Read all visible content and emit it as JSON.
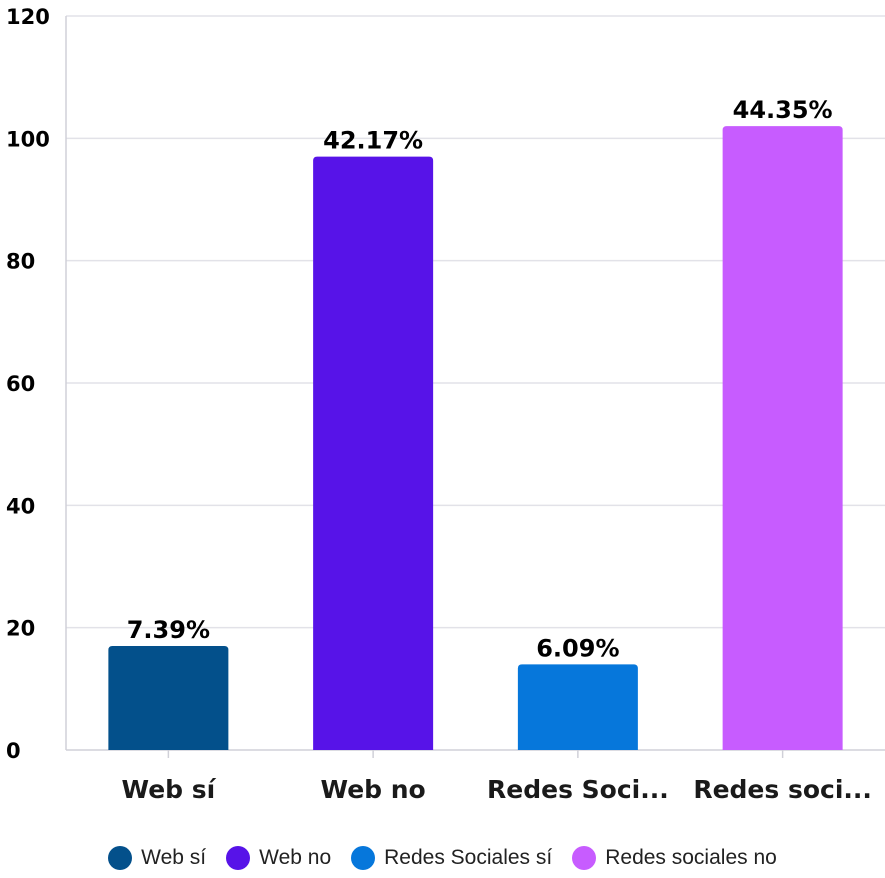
{
  "chart_data": {
    "type": "bar",
    "categories": [
      "Web sí",
      "Web no",
      "Redes Soci...",
      "Redes soci..."
    ],
    "values": [
      17,
      97,
      14,
      102
    ],
    "data_labels": [
      "7.39%",
      "42.17%",
      "6.09%",
      "44.35%"
    ],
    "colors": [
      "#03508b",
      "#5713e8",
      "#0677db",
      "#c75cff"
    ],
    "ylim": [
      0,
      120
    ],
    "yticks": [
      "0",
      "20",
      "40",
      "60",
      "80",
      "100",
      "120"
    ],
    "grid": true,
    "legend_position": "bottom",
    "legend": [
      "Web sí",
      "Web no",
      "Redes Sociales sí",
      "Redes sociales no"
    ]
  }
}
